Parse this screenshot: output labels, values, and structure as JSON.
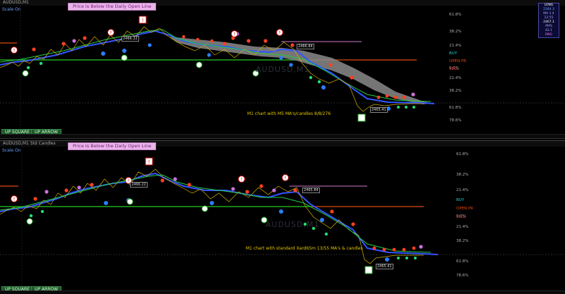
{
  "top": {
    "titlebar": "AUDUSD,M1",
    "scale_label": "Scale On",
    "banner": "Price Is Below the Daily Open Line",
    "watermark": "AUDUSD,M1",
    "caption": "M1 chart with M5 MA's/candles 8/8/276",
    "levels": [
      "61.8%",
      "38.2%",
      "21.4%",
      "0.0%",
      "21.4%",
      "38.2%",
      "61.8%",
      "78.6%"
    ],
    "legend": {
      "buy": "BUY",
      "open": "OPEN PR",
      "sell": "SELL"
    },
    "tags": [
      "2466.22",
      "2466.84",
      "2465.41"
    ],
    "buttons": {
      "square": "UP SQUARE",
      "arrow": "UP ARROW"
    },
    "info_box": [
      "LONG",
      "2344.3",
      "MA 1.4",
      "12:55",
      "2467.1",
      "PIPS",
      "42.1",
      "RNG"
    ]
  },
  "bottom": {
    "titlebar": "AUDUSD,M1  Std Candles",
    "scale_label": "Scale On",
    "banner": "Price Is Below the Daily Open Line",
    "watermark": "AUDUSD,M1",
    "caption": "M1 chart with standard Xard65m 13/55 MA's & candles",
    "levels": [
      "61.8%",
      "38.2%",
      "21.4%",
      "0.0%",
      "21.4%",
      "38.2%",
      "61.8%",
      "78.6%"
    ],
    "legend": {
      "buy": "BUY",
      "open": "OPEN PR",
      "sell": "SELL"
    },
    "tags": [
      "2466.22",
      "2465.84",
      "2465.41"
    ],
    "buttons": {
      "square": "UP SQUARE",
      "arrow": "UP ARROW"
    }
  },
  "colors": {
    "green_line": "#1faa1f",
    "orange_line": "#e04a10",
    "pink_line": "#d07ad0",
    "ma_blue": "#3355ff",
    "cloud": "#8a8a8a",
    "dot_red": "#ff4020",
    "dot_green": "#20e070",
    "dot_blue": "#2a7fff",
    "dot_violet": "#d070e0"
  }
}
